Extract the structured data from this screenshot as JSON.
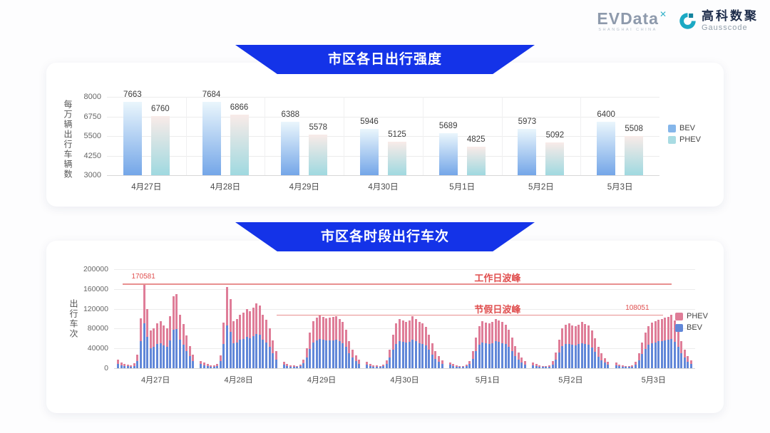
{
  "header": {
    "evdata": {
      "name": "EVData",
      "sup": "✕",
      "subtext": "SHANGHAI CHINA"
    },
    "gausscode": {
      "cn": "高科数聚",
      "en": "Gausscode"
    }
  },
  "colors": {
    "banner_blue": "#1433e8",
    "bev_gradient_top": "#eaf6fc",
    "bev_gradient_bottom": "#74a6e8",
    "phev_gradient_top": "#f9ebe8",
    "phev_gradient_bottom": "#9fd9e0",
    "legend1_bev": "#85b6ea",
    "legend1_phev": "#a9dce3",
    "bev_solid": "#6187d8",
    "phev_solid": "#df7d98",
    "annotation_text_red": "#e04f4f",
    "annotation_line_red": "#e89090",
    "gausscode_teal": "#1ba9c4",
    "gausscode_teal_dark": "#13839e"
  },
  "chart_data": [
    {
      "type": "bar",
      "title": "市区各日出行强度",
      "ylabel": "每万辆出行车辆数",
      "ylim": [
        3000,
        8000
      ],
      "yticks": [
        8000,
        6750,
        5500,
        4250,
        3000
      ],
      "grid": true,
      "legend_position": "right",
      "categories": [
        "4月27日",
        "4月28日",
        "4月29日",
        "4月30日",
        "5月1日",
        "5月2日",
        "5月3日"
      ],
      "series": [
        {
          "name": "BEV",
          "values": [
            7663,
            7684,
            6388,
            5946,
            5689,
            5973,
            6400
          ]
        },
        {
          "name": "PHEV",
          "values": [
            6760,
            6866,
            5578,
            5125,
            4825,
            5092,
            5508
          ]
        }
      ]
    },
    {
      "type": "bar",
      "stacked": true,
      "title": "市区各时段出行车次",
      "ylabel": "出行车次",
      "ylim": [
        0,
        200000
      ],
      "yticks": [
        200000,
        160000,
        120000,
        80000,
        40000,
        0
      ],
      "grid": true,
      "legend_position": "right",
      "legend_order": [
        "PHEV",
        "BEV"
      ],
      "hours_per_day": 24,
      "categories": [
        "4月27日",
        "4月28日",
        "4月29日",
        "4月30日",
        "5月1日",
        "5月2日",
        "5月3日"
      ],
      "days": [
        {
          "date": "4月27日",
          "bev": [
            9000,
            6400,
            4500,
            3700,
            3400,
            5000,
            15000,
            54000,
            90581,
            63000,
            40500,
            42500,
            48500,
            50500,
            46000,
            43000,
            56000,
            77500,
            79000,
            57500,
            47000,
            35000,
            24000,
            15000
          ],
          "phev": [
            8000,
            5600,
            4000,
            3300,
            3100,
            4500,
            13000,
            47000,
            80000,
            56000,
            35500,
            37500,
            42500,
            44500,
            41000,
            38000,
            49000,
            68500,
            70000,
            50500,
            42000,
            31000,
            21000,
            13000
          ]
        },
        {
          "date": "4月28日",
          "bev": [
            8000,
            5900,
            4300,
            3500,
            3200,
            4800,
            14000,
            49000,
            87000,
            74000,
            50500,
            52500,
            57500,
            59500,
            63000,
            61000,
            64500,
            69500,
            67000,
            57500,
            52000,
            42500,
            30000,
            18000
          ],
          "phev": [
            7000,
            5100,
            3700,
            3000,
            2800,
            4200,
            12000,
            43000,
            77000,
            66000,
            44500,
            46500,
            50500,
            52500,
            56000,
            54000,
            57500,
            61500,
            59000,
            50500,
            46000,
            37500,
            26000,
            16000
          ]
        },
        {
          "date": "4月29日",
          "bev": [
            7000,
            5000,
            3500,
            3000,
            2700,
            4100,
            9400,
            22000,
            39500,
            52000,
            56000,
            59500,
            57000,
            55500,
            56000,
            56500,
            58000,
            55000,
            51000,
            43000,
            30000,
            21000,
            14000,
            9300
          ],
          "phev": [
            6000,
            4000,
            3000,
            2500,
            2300,
            3400,
            7600,
            18000,
            32500,
            43000,
            46000,
            48500,
            47000,
            45500,
            46000,
            46500,
            47000,
            45000,
            42000,
            35000,
            25000,
            17000,
            12000,
            7700
          ]
        },
        {
          "date": "4月30日",
          "bev": [
            7100,
            4900,
            3500,
            3000,
            2700,
            3800,
            8800,
            21000,
            37500,
            49500,
            54500,
            53000,
            51500,
            53500,
            58000,
            55000,
            51000,
            49500,
            45500,
            37500,
            27500,
            19000,
            13000,
            8700
          ],
          "phev": [
            5900,
            4100,
            3000,
            2500,
            2300,
            3200,
            7200,
            17000,
            30500,
            40500,
            44500,
            43000,
            42500,
            43500,
            47000,
            45000,
            42000,
            40500,
            37500,
            30500,
            22500,
            16000,
            11000,
            7300
          ]
        },
        {
          "date": "5月1日",
          "bev": [
            6600,
            4700,
            3300,
            2700,
            2700,
            3800,
            8200,
            19000,
            34000,
            47000,
            52000,
            50500,
            49500,
            51000,
            54500,
            53000,
            51000,
            48500,
            43000,
            34000,
            24500,
            17000,
            11500,
            7700
          ],
          "phev": [
            5400,
            3800,
            2700,
            2300,
            2300,
            3200,
            6800,
            16000,
            28000,
            38000,
            43000,
            41500,
            40500,
            42000,
            44500,
            43000,
            42000,
            39500,
            35000,
            28000,
            20500,
            14000,
            9500,
            6300
          ]
        },
        {
          "date": "5月2日",
          "bev": [
            6000,
            4400,
            3000,
            2700,
            2500,
            3500,
            7700,
            17500,
            32000,
            44000,
            48500,
            49500,
            48000,
            46500,
            48500,
            51000,
            49000,
            47500,
            42000,
            33000,
            23500,
            16500,
            11000,
            7100
          ],
          "phev": [
            5000,
            3600,
            2500,
            2300,
            2000,
            3000,
            6300,
            14500,
            26000,
            36000,
            39500,
            40500,
            39000,
            38500,
            39500,
            42000,
            40000,
            38500,
            34000,
            27000,
            19500,
            13500,
            9000,
            5900
          ]
        },
        {
          "date": "5月3日",
          "bev": [
            6000,
            4100,
            3000,
            2500,
            2500,
            3300,
            7100,
            16500,
            28500,
            39500,
            47000,
            50500,
            52000,
            54000,
            55000,
            56000,
            57000,
            59551,
            53000,
            43000,
            30000,
            21000,
            13500,
            8800
          ],
          "phev": [
            5000,
            3400,
            2500,
            2000,
            2000,
            2700,
            5900,
            13500,
            23500,
            32500,
            38000,
            41500,
            43000,
            44000,
            45000,
            46000,
            47000,
            48500,
            43000,
            35000,
            25000,
            17000,
            11500,
            7200
          ]
        }
      ],
      "annotations": [
        {
          "id": "workday_peak",
          "label": "工作日波峰",
          "label_x_pct": 66,
          "value": 170581,
          "value_label": "170581",
          "value_label_x_pct": 3,
          "line_start_pct": 1.5,
          "line_end_pct": 96
        },
        {
          "id": "holiday_peak",
          "label": "节假日波峰",
          "label_x_pct": 66,
          "value": 108051,
          "value_label": "108051",
          "value_label_x_pct": 88,
          "line_start_pct": 28,
          "line_end_pct": 94.5
        }
      ]
    }
  ]
}
